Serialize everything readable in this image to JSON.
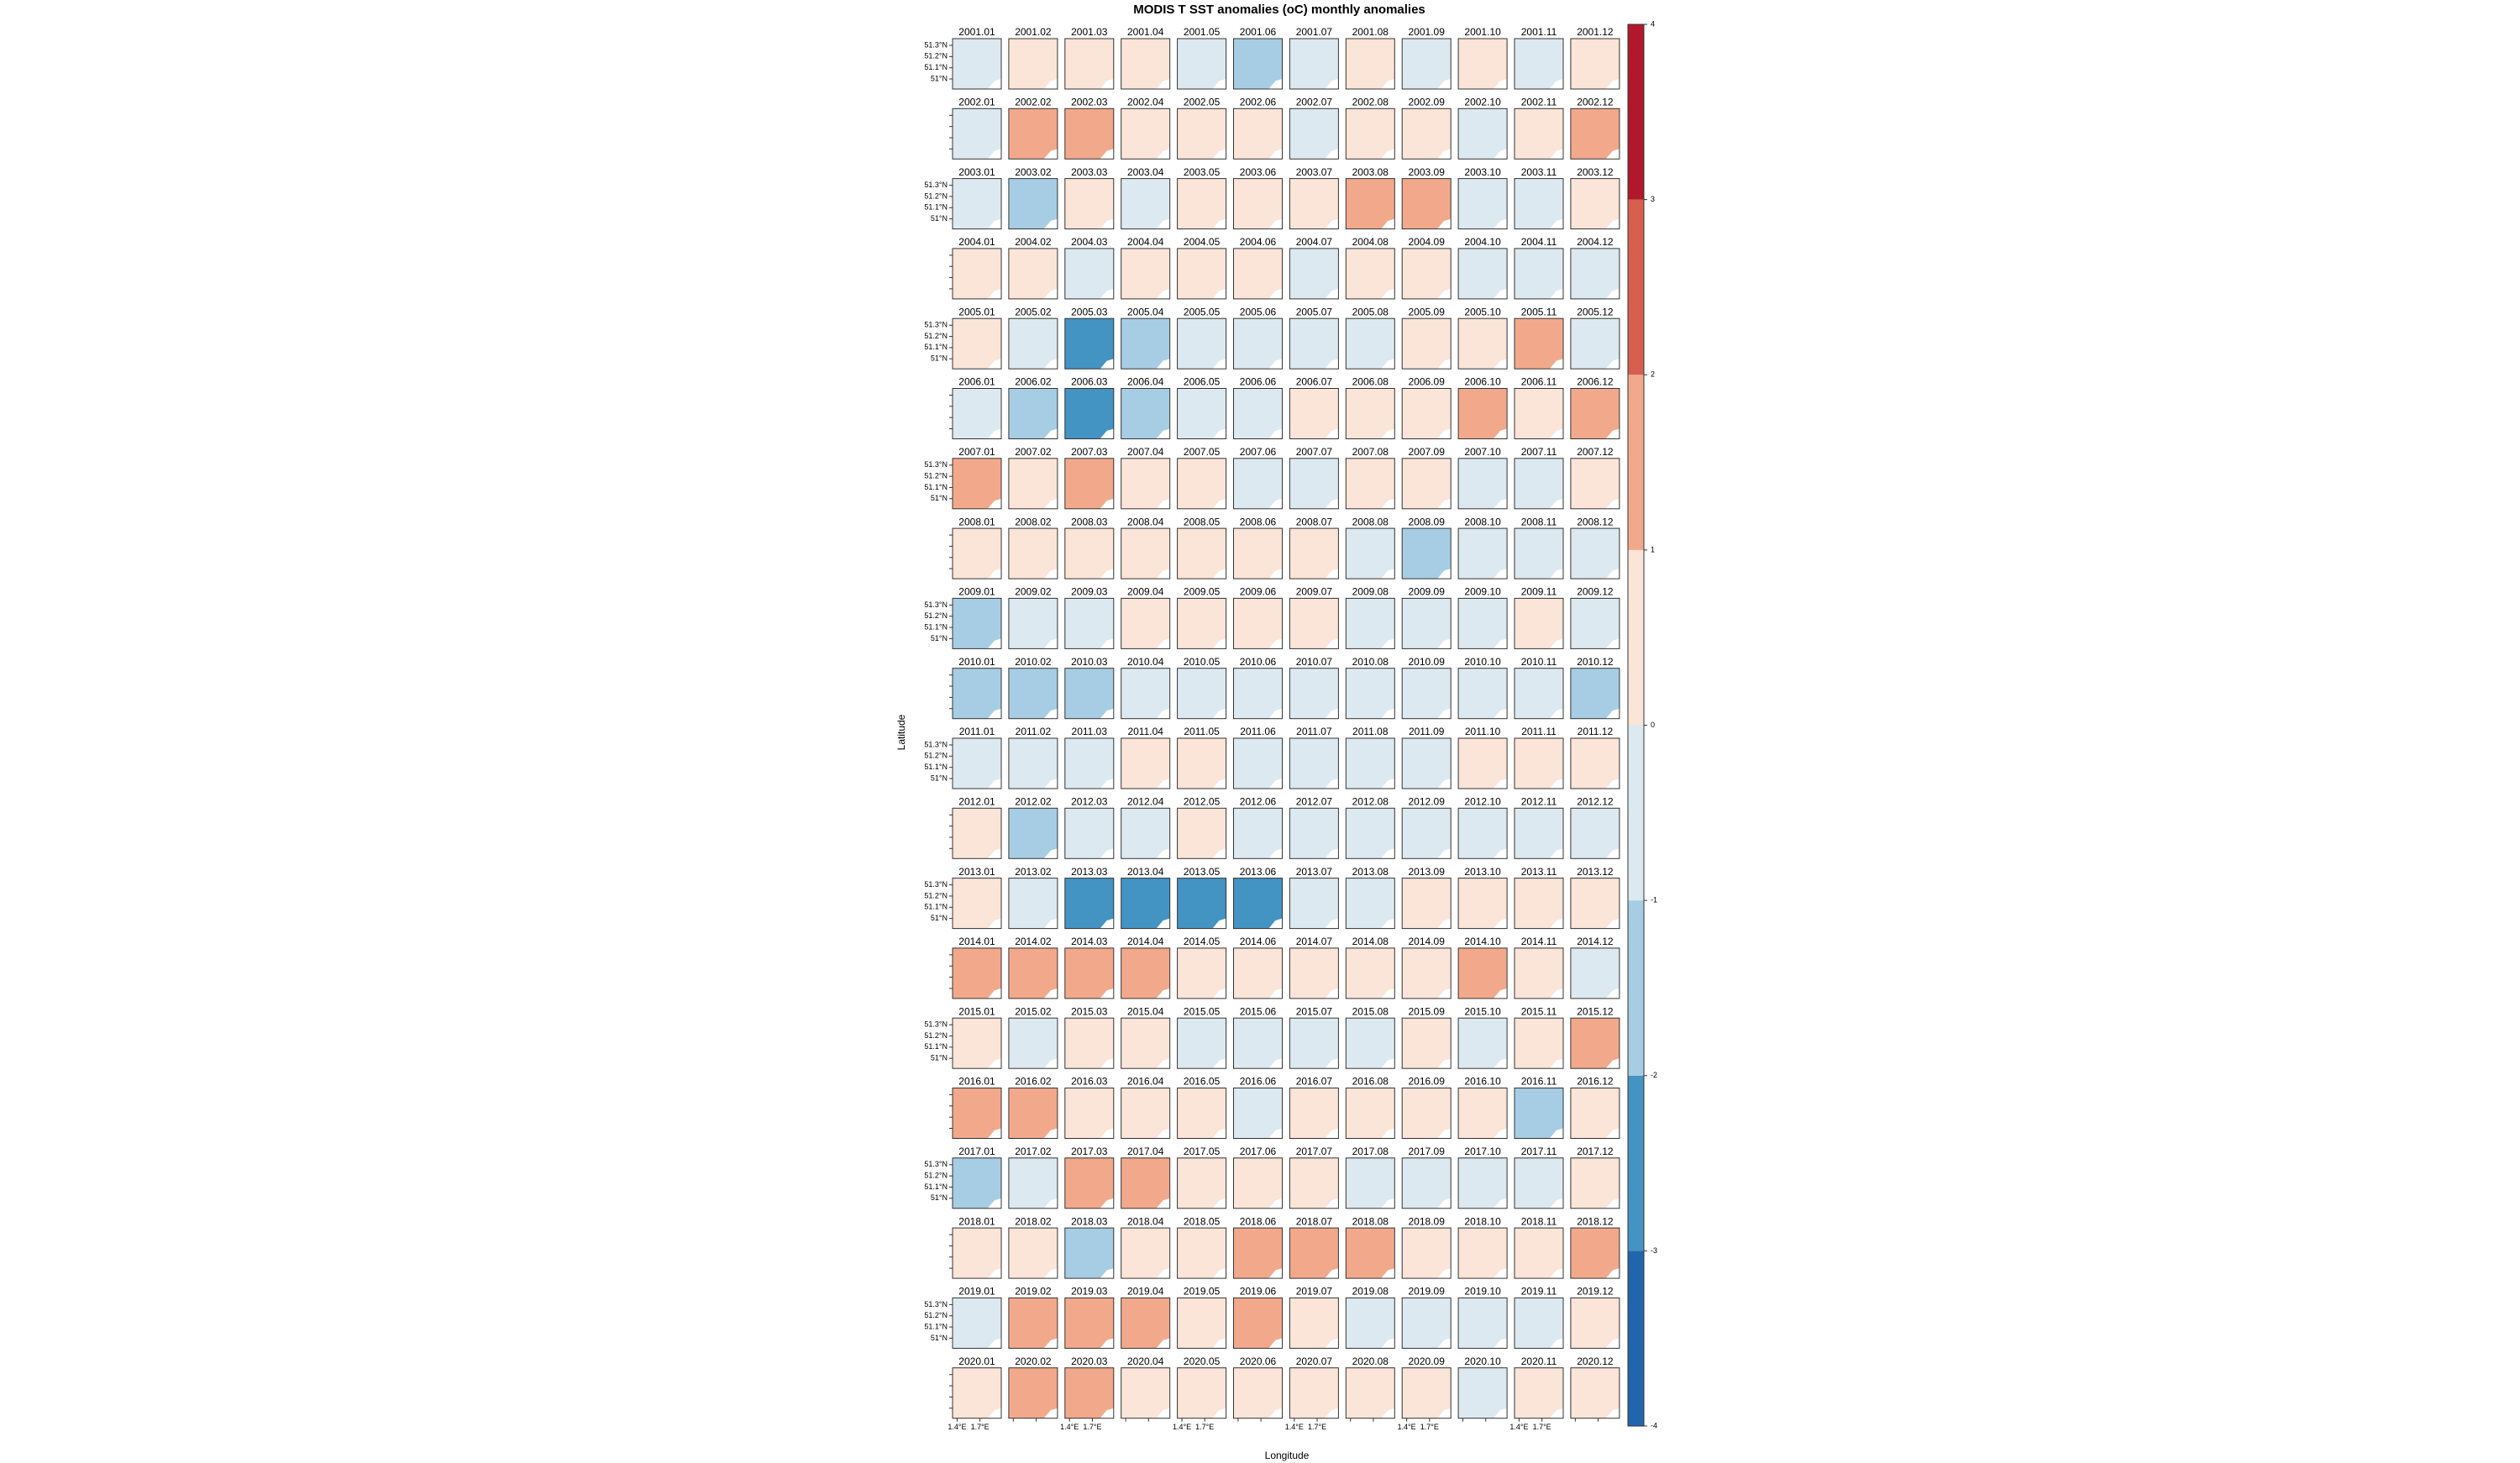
{
  "chart_data": {
    "type": "panel-grid",
    "title": "MODIS T SST anomalies (oC) monthly anomalies",
    "xlabel": "Longitude",
    "ylabel": "Latitude",
    "xlim": [
      1.34,
      1.98
    ],
    "ylim": [
      50.91,
      51.36
    ],
    "xticks": [
      {
        "value": 1.4,
        "label": "1.4°E"
      },
      {
        "value": 1.7,
        "label": "1.7°E"
      }
    ],
    "yticks": [
      {
        "value": 51,
        "label": "51°N"
      },
      {
        "value": 51.1,
        "label": "51.1°N"
      },
      {
        "value": 51.2,
        "label": "51.2°N"
      },
      {
        "value": 51.3,
        "label": "51.3°N"
      }
    ],
    "levels": [
      -4,
      -3,
      -2,
      -1,
      0,
      1,
      2,
      3,
      4
    ],
    "colors": [
      "#2166ac",
      "#4393c3",
      "#a6cde3",
      "#dde9f1",
      "#fbe4d8",
      "#f2a98b",
      "#d6604d",
      "#b2182b"
    ],
    "panels": [
      {
        "labels": [
          "2001.01",
          "2001.02",
          "2001.03",
          "2001.04",
          "2001.05",
          "2001.06",
          "2001.07",
          "2001.08",
          "2001.09",
          "2001.10",
          "2001.11",
          "2001.12"
        ],
        "values": [
          -0.5,
          0.5,
          0.5,
          0.5,
          -0.5,
          -1.5,
          -0.5,
          0.5,
          -0.5,
          0.5,
          -0.5,
          0.5
        ]
      },
      {
        "labels": [
          "2002.01",
          "2002.02",
          "2002.03",
          "2002.04",
          "2002.05",
          "2002.06",
          "2002.07",
          "2002.08",
          "2002.09",
          "2002.10",
          "2002.11",
          "2002.12"
        ],
        "values": [
          -0.5,
          1.5,
          1.5,
          0.5,
          0.5,
          0.5,
          -0.5,
          0.5,
          0.5,
          -0.5,
          0.5,
          1.5
        ]
      },
      {
        "labels": [
          "2003.01",
          "2003.02",
          "2003.03",
          "2003.04",
          "2003.05",
          "2003.06",
          "2003.07",
          "2003.08",
          "2003.09",
          "2003.10",
          "2003.11",
          "2003.12"
        ],
        "values": [
          -0.5,
          -1.5,
          0.5,
          -0.5,
          0.5,
          0.5,
          0.5,
          1.5,
          1.5,
          -0.5,
          -0.5,
          0.5
        ]
      },
      {
        "labels": [
          "2004.01",
          "2004.02",
          "2004.03",
          "2004.04",
          "2004.05",
          "2004.06",
          "2004.07",
          "2004.08",
          "2004.09",
          "2004.10",
          "2004.11",
          "2004.12"
        ],
        "values": [
          0.5,
          0.5,
          -0.5,
          0.5,
          0.5,
          0.5,
          -0.5,
          0.5,
          0.5,
          -0.5,
          -0.5,
          -0.5
        ]
      },
      {
        "labels": [
          "2005.01",
          "2005.02",
          "2005.03",
          "2005.04",
          "2005.05",
          "2005.06",
          "2005.07",
          "2005.08",
          "2005.09",
          "2005.10",
          "2005.11",
          "2005.12"
        ],
        "values": [
          0.5,
          -0.5,
          -2.5,
          -1.5,
          -0.5,
          -0.5,
          -0.5,
          -0.5,
          0.5,
          0.5,
          1.5,
          -0.5
        ]
      },
      {
        "labels": [
          "2006.01",
          "2006.02",
          "2006.03",
          "2006.04",
          "2006.05",
          "2006.06",
          "2006.07",
          "2006.08",
          "2006.09",
          "2006.10",
          "2006.11",
          "2006.12"
        ],
        "values": [
          -0.5,
          -1.5,
          -2.5,
          -1.5,
          -0.5,
          -0.5,
          0.5,
          0.5,
          0.5,
          1.5,
          0.5,
          1.5
        ]
      },
      {
        "labels": [
          "2007.01",
          "2007.02",
          "2007.03",
          "2007.04",
          "2007.05",
          "2007.06",
          "2007.07",
          "2007.08",
          "2007.09",
          "2007.10",
          "2007.11",
          "2007.12"
        ],
        "values": [
          1.5,
          0.5,
          1.5,
          0.5,
          0.5,
          -0.5,
          -0.5,
          0.5,
          0.5,
          -0.5,
          -0.5,
          0.5
        ]
      },
      {
        "labels": [
          "2008.01",
          "2008.02",
          "2008.03",
          "2008.04",
          "2008.05",
          "2008.06",
          "2008.07",
          "2008.08",
          "2008.09",
          "2008.10",
          "2008.11",
          "2008.12"
        ],
        "values": [
          0.5,
          0.5,
          0.5,
          0.5,
          0.5,
          0.5,
          0.5,
          -0.5,
          -1.5,
          -0.5,
          -0.5,
          -0.5
        ]
      },
      {
        "labels": [
          "2009.01",
          "2009.02",
          "2009.03",
          "2009.04",
          "2009.05",
          "2009.06",
          "2009.07",
          "2009.08",
          "2009.09",
          "2009.10",
          "2009.11",
          "2009.12"
        ],
        "values": [
          -1.5,
          -0.5,
          -0.5,
          0.5,
          0.5,
          0.5,
          0.5,
          -0.5,
          -0.5,
          -0.5,
          0.5,
          -0.5
        ]
      },
      {
        "labels": [
          "2010.01",
          "2010.02",
          "2010.03",
          "2010.04",
          "2010.05",
          "2010.06",
          "2010.07",
          "2010.08",
          "2010.09",
          "2010.10",
          "2010.11",
          "2010.12"
        ],
        "values": [
          -1.5,
          -1.5,
          -1.5,
          -0.5,
          -0.5,
          -0.5,
          -0.5,
          -0.5,
          -0.5,
          -0.5,
          -0.5,
          -1.5
        ]
      },
      {
        "labels": [
          "2011.01",
          "2011.02",
          "2011.03",
          "2011.04",
          "2011.05",
          "2011.06",
          "2011.07",
          "2011.08",
          "2011.09",
          "2011.10",
          "2011.11",
          "2011.12"
        ],
        "values": [
          -0.5,
          -0.5,
          -0.5,
          0.5,
          0.5,
          -0.5,
          -0.5,
          -0.5,
          -0.5,
          0.5,
          0.5,
          0.5
        ]
      },
      {
        "labels": [
          "2012.01",
          "2012.02",
          "2012.03",
          "2012.04",
          "2012.05",
          "2012.06",
          "2012.07",
          "2012.08",
          "2012.09",
          "2012.10",
          "2012.11",
          "2012.12"
        ],
        "values": [
          0.5,
          -1.5,
          -0.5,
          -0.5,
          0.5,
          -0.5,
          -0.5,
          -0.5,
          -0.5,
          -0.5,
          -0.5,
          -0.5
        ]
      },
      {
        "labels": [
          "2013.01",
          "2013.02",
          "2013.03",
          "2013.04",
          "2013.05",
          "2013.06",
          "2013.07",
          "2013.08",
          "2013.09",
          "2013.10",
          "2013.11",
          "2013.12"
        ],
        "values": [
          0.5,
          -0.5,
          -2.5,
          -2.5,
          -2.5,
          -2.5,
          -0.5,
          -0.5,
          0.5,
          0.5,
          0.5,
          0.5
        ]
      },
      {
        "labels": [
          "2014.01",
          "2014.02",
          "2014.03",
          "2014.04",
          "2014.05",
          "2014.06",
          "2014.07",
          "2014.08",
          "2014.09",
          "2014.10",
          "2014.11",
          "2014.12"
        ],
        "values": [
          1.5,
          1.5,
          1.5,
          1.5,
          0.5,
          0.5,
          0.5,
          0.5,
          0.5,
          1.5,
          0.5,
          -0.5
        ]
      },
      {
        "labels": [
          "2015.01",
          "2015.02",
          "2015.03",
          "2015.04",
          "2015.05",
          "2015.06",
          "2015.07",
          "2015.08",
          "2015.09",
          "2015.10",
          "2015.11",
          "2015.12"
        ],
        "values": [
          0.5,
          -0.5,
          0.5,
          0.5,
          -0.5,
          -0.5,
          -0.5,
          -0.5,
          0.5,
          -0.5,
          0.5,
          1.5
        ]
      },
      {
        "labels": [
          "2016.01",
          "2016.02",
          "2016.03",
          "2016.04",
          "2016.05",
          "2016.06",
          "2016.07",
          "2016.08",
          "2016.09",
          "2016.10",
          "2016.11",
          "2016.12"
        ],
        "values": [
          1.5,
          1.5,
          0.5,
          0.5,
          0.5,
          -0.5,
          0.5,
          0.5,
          0.5,
          0.5,
          -1.5,
          0.5
        ]
      },
      {
        "labels": [
          "2017.01",
          "2017.02",
          "2017.03",
          "2017.04",
          "2017.05",
          "2017.06",
          "2017.07",
          "2017.08",
          "2017.09",
          "2017.10",
          "2017.11",
          "2017.12"
        ],
        "values": [
          -1.5,
          -0.5,
          1.5,
          1.5,
          0.5,
          0.5,
          0.5,
          -0.5,
          -0.5,
          -0.5,
          -0.5,
          0.5
        ]
      },
      {
        "labels": [
          "2018.01",
          "2018.02",
          "2018.03",
          "2018.04",
          "2018.05",
          "2018.06",
          "2018.07",
          "2018.08",
          "2018.09",
          "2018.10",
          "2018.11",
          "2018.12"
        ],
        "values": [
          0.5,
          0.5,
          -1.5,
          0.5,
          0.5,
          1.5,
          1.5,
          1.5,
          0.5,
          0.5,
          0.5,
          1.5
        ]
      },
      {
        "labels": [
          "2019.01",
          "2019.02",
          "2019.03",
          "2019.04",
          "2019.05",
          "2019.06",
          "2019.07",
          "2019.08",
          "2019.09",
          "2019.10",
          "2019.11",
          "2019.12"
        ],
        "values": [
          -0.5,
          1.5,
          1.5,
          1.5,
          0.5,
          1.5,
          0.5,
          -0.5,
          -0.5,
          -0.5,
          -0.5,
          0.5
        ]
      },
      {
        "labels": [
          "2020.01",
          "2020.02",
          "2020.03",
          "2020.04",
          "2020.05",
          "2020.06",
          "2020.07",
          "2020.08",
          "2020.09",
          "2020.10",
          "2020.11",
          "2020.12"
        ],
        "values": [
          0.5,
          1.5,
          1.5,
          0.5,
          0.5,
          0.5,
          0.5,
          0.5,
          0.5,
          -0.5,
          0.5,
          0.5
        ]
      }
    ]
  }
}
